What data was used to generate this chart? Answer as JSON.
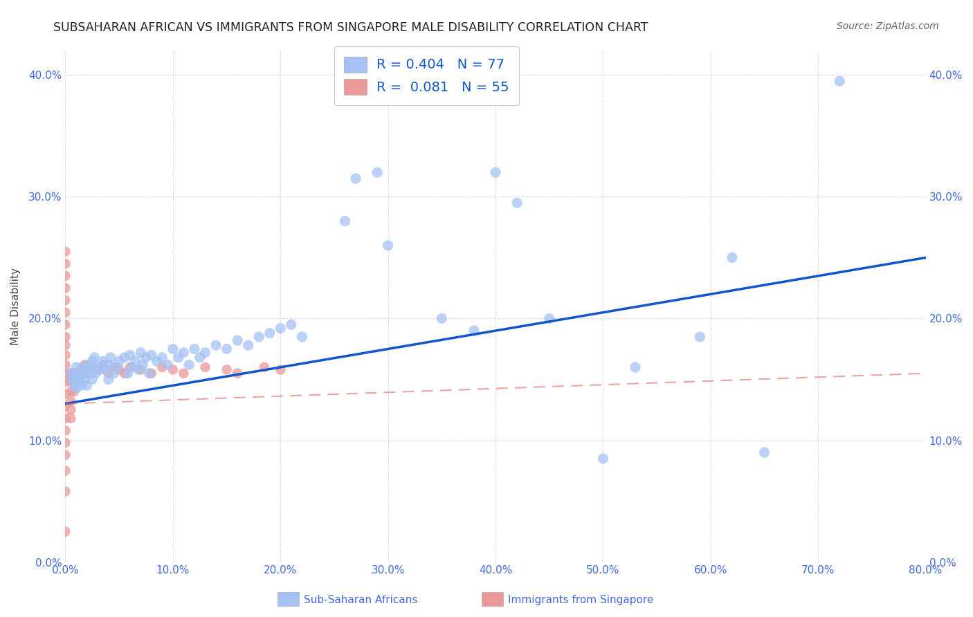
{
  "title": "SUBSAHARAN AFRICAN VS IMMIGRANTS FROM SINGAPORE MALE DISABILITY CORRELATION CHART",
  "source": "Source: ZipAtlas.com",
  "ylabel": "Male Disability",
  "xlim": [
    0.0,
    0.8
  ],
  "ylim": [
    0.0,
    0.42
  ],
  "x_ticks": [
    0.0,
    0.1,
    0.2,
    0.3,
    0.4,
    0.5,
    0.6,
    0.7,
    0.8
  ],
  "y_ticks": [
    0.0,
    0.1,
    0.2,
    0.3,
    0.4
  ],
  "blue_color": "#a4c2f4",
  "blue_line_color": "#1155cc",
  "pink_color": "#ea9999",
  "pink_line_color": "#e06666",
  "background_color": "#ffffff",
  "grid_color": "#dddddd",
  "tick_color": "#4169e1",
  "title_color": "#222222",
  "source_color": "#666666",
  "label_color": "#4169e1",
  "legend_label_color": "#1155cc",
  "R_blue": 0.404,
  "N_blue": 77,
  "R_pink": 0.081,
  "N_pink": 55,
  "blue_x": [
    0.005,
    0.007,
    0.008,
    0.009,
    0.01,
    0.01,
    0.01,
    0.012,
    0.013,
    0.014,
    0.015,
    0.015,
    0.016,
    0.018,
    0.02,
    0.02,
    0.022,
    0.023,
    0.025,
    0.025,
    0.027,
    0.028,
    0.03,
    0.032,
    0.035,
    0.038,
    0.04,
    0.04,
    0.042,
    0.045,
    0.048,
    0.05,
    0.055,
    0.058,
    0.06,
    0.062,
    0.065,
    0.068,
    0.07,
    0.072,
    0.075,
    0.078,
    0.08,
    0.085,
    0.09,
    0.095,
    0.1,
    0.105,
    0.11,
    0.115,
    0.12,
    0.125,
    0.13,
    0.14,
    0.15,
    0.16,
    0.17,
    0.18,
    0.19,
    0.2,
    0.21,
    0.22,
    0.26,
    0.27,
    0.29,
    0.3,
    0.35,
    0.38,
    0.4,
    0.42,
    0.45,
    0.5,
    0.53,
    0.59,
    0.62,
    0.65,
    0.72
  ],
  "blue_y": [
    0.155,
    0.148,
    0.152,
    0.145,
    0.16,
    0.15,
    0.143,
    0.155,
    0.148,
    0.152,
    0.157,
    0.145,
    0.16,
    0.15,
    0.158,
    0.145,
    0.162,
    0.155,
    0.165,
    0.15,
    0.168,
    0.155,
    0.16,
    0.158,
    0.165,
    0.158,
    0.162,
    0.15,
    0.168,
    0.155,
    0.16,
    0.165,
    0.168,
    0.155,
    0.17,
    0.16,
    0.165,
    0.158,
    0.172,
    0.162,
    0.168,
    0.155,
    0.17,
    0.165,
    0.168,
    0.162,
    0.175,
    0.168,
    0.172,
    0.162,
    0.175,
    0.168,
    0.172,
    0.178,
    0.175,
    0.182,
    0.178,
    0.185,
    0.188,
    0.192,
    0.195,
    0.185,
    0.28,
    0.315,
    0.32,
    0.26,
    0.2,
    0.19,
    0.32,
    0.295,
    0.2,
    0.085,
    0.16,
    0.185,
    0.25,
    0.09,
    0.395
  ],
  "pink_x": [
    0.0,
    0.0,
    0.0,
    0.0,
    0.0,
    0.0,
    0.0,
    0.0,
    0.0,
    0.0,
    0.0,
    0.0,
    0.0,
    0.0,
    0.0,
    0.0,
    0.0,
    0.0,
    0.0,
    0.0,
    0.0,
    0.0,
    0.005,
    0.005,
    0.005,
    0.005,
    0.005,
    0.005,
    0.008,
    0.008,
    0.008,
    0.01,
    0.01,
    0.012,
    0.015,
    0.018,
    0.02,
    0.025,
    0.03,
    0.035,
    0.04,
    0.045,
    0.05,
    0.055,
    0.06,
    0.07,
    0.08,
    0.09,
    0.1,
    0.11,
    0.13,
    0.15,
    0.16,
    0.185,
    0.2
  ],
  "pink_y": [
    0.255,
    0.245,
    0.235,
    0.225,
    0.215,
    0.205,
    0.195,
    0.185,
    0.178,
    0.17,
    0.162,
    0.155,
    0.148,
    0.138,
    0.128,
    0.118,
    0.108,
    0.098,
    0.088,
    0.075,
    0.058,
    0.025,
    0.155,
    0.148,
    0.14,
    0.132,
    0.125,
    0.118,
    0.155,
    0.148,
    0.14,
    0.155,
    0.148,
    0.152,
    0.158,
    0.162,
    0.155,
    0.16,
    0.158,
    0.162,
    0.155,
    0.16,
    0.158,
    0.155,
    0.16,
    0.158,
    0.155,
    0.16,
    0.158,
    0.155,
    0.16,
    0.158,
    0.155,
    0.16,
    0.158
  ]
}
